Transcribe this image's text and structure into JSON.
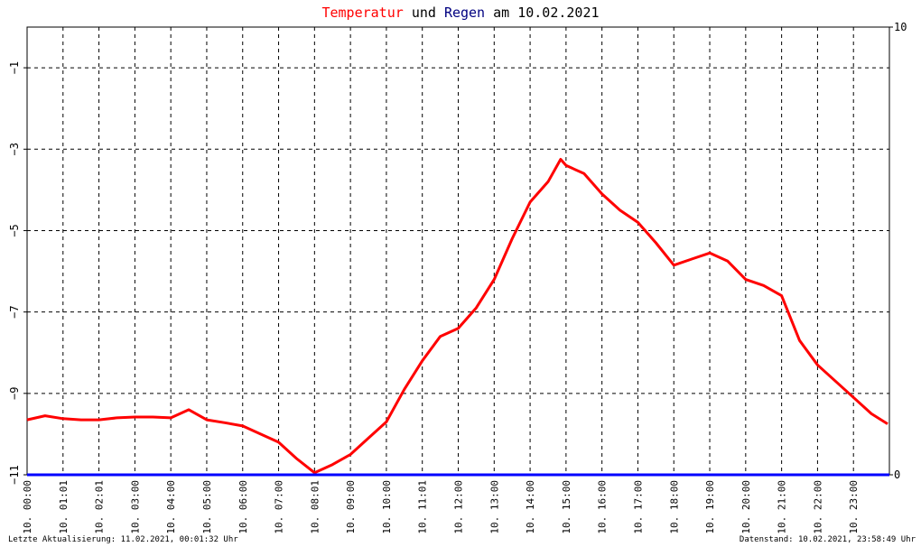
{
  "title": {
    "part1": "Temperatur",
    "part2": "und",
    "part3": "Regen",
    "part4": "am 10.02.2021",
    "temp_color": "#ff0000",
    "rain_color": "#000080"
  },
  "footer": {
    "left": "Letzte Aktualisierung: 11.02.2021, 00:01:32 Uhr",
    "right": "Datenstand: 10.02.2021, 23:58:49 Uhr"
  },
  "chart_data": {
    "type": "line",
    "x_unit": "hour of day (10.02.2021)",
    "xlim": [
      0,
      24
    ],
    "x_ticks": [
      {
        "x": 0,
        "label": "10. 00:00"
      },
      {
        "x": 1,
        "label": "10. 01:01"
      },
      {
        "x": 2,
        "label": "10. 02:01"
      },
      {
        "x": 3,
        "label": "10. 03:00"
      },
      {
        "x": 4,
        "label": "10. 04:00"
      },
      {
        "x": 5,
        "label": "10. 05:00"
      },
      {
        "x": 6,
        "label": "10. 06:00"
      },
      {
        "x": 7,
        "label": "10. 07:00"
      },
      {
        "x": 8,
        "label": "10. 08:01"
      },
      {
        "x": 9,
        "label": "10. 09:00"
      },
      {
        "x": 10,
        "label": "10. 10:00"
      },
      {
        "x": 11,
        "label": "10. 11:01"
      },
      {
        "x": 12,
        "label": "10. 12:00"
      },
      {
        "x": 13,
        "label": "10. 13:00"
      },
      {
        "x": 14,
        "label": "10. 14:00"
      },
      {
        "x": 15,
        "label": "10. 15:00"
      },
      {
        "x": 16,
        "label": "10. 16:00"
      },
      {
        "x": 17,
        "label": "10. 17:00"
      },
      {
        "x": 18,
        "label": "10. 18:00"
      },
      {
        "x": 19,
        "label": "10. 19:00"
      },
      {
        "x": 20,
        "label": "10. 20:00"
      },
      {
        "x": 21,
        "label": "10. 21:00"
      },
      {
        "x": 22,
        "label": "10. 22:00"
      },
      {
        "x": 23,
        "label": "10. 23:00"
      }
    ],
    "y_left": {
      "ylim": [
        -11,
        0
      ],
      "ticks": [
        -11,
        -9,
        -7,
        -5,
        -3,
        -1
      ]
    },
    "y_right": {
      "ylim": [
        0,
        10
      ],
      "ticks": [
        0,
        10
      ]
    },
    "grid": true,
    "series": [
      {
        "name": "Temperatur",
        "axis": "left",
        "color": "#ff0000",
        "x": [
          0,
          0.5,
          1,
          1.5,
          2,
          2.5,
          3,
          3.5,
          4,
          4.5,
          5,
          5.5,
          6,
          6.5,
          7,
          7.5,
          8,
          8.5,
          9,
          9.5,
          10,
          10.5,
          11,
          11.5,
          12,
          12.5,
          13,
          13.5,
          14,
          14.5,
          14.85,
          15,
          15.5,
          16,
          16.5,
          17,
          17.5,
          18,
          18.5,
          19,
          19.5,
          20,
          20.5,
          21,
          21.5,
          22,
          22.5,
          23,
          23.5,
          23.95
        ],
        "y": [
          -9.65,
          -9.55,
          -9.62,
          -9.65,
          -9.65,
          -9.6,
          -9.58,
          -9.58,
          -9.6,
          -9.4,
          -9.65,
          -9.72,
          -9.8,
          -10.0,
          -10.2,
          -10.6,
          -10.95,
          -10.75,
          -10.5,
          -10.1,
          -9.7,
          -8.9,
          -8.2,
          -7.6,
          -7.4,
          -6.9,
          -6.2,
          -5.2,
          -4.3,
          -3.8,
          -3.25,
          -3.4,
          -3.6,
          -4.1,
          -4.5,
          -4.8,
          -5.3,
          -5.85,
          -5.7,
          -5.55,
          -5.75,
          -6.2,
          -6.35,
          -6.6,
          -7.7,
          -8.3,
          -8.7,
          -9.1,
          -9.5,
          -9.75
        ]
      },
      {
        "name": "Regen",
        "axis": "right",
        "color": "#0000ff",
        "x": [
          0,
          24
        ],
        "y": [
          0,
          0
        ]
      }
    ]
  }
}
